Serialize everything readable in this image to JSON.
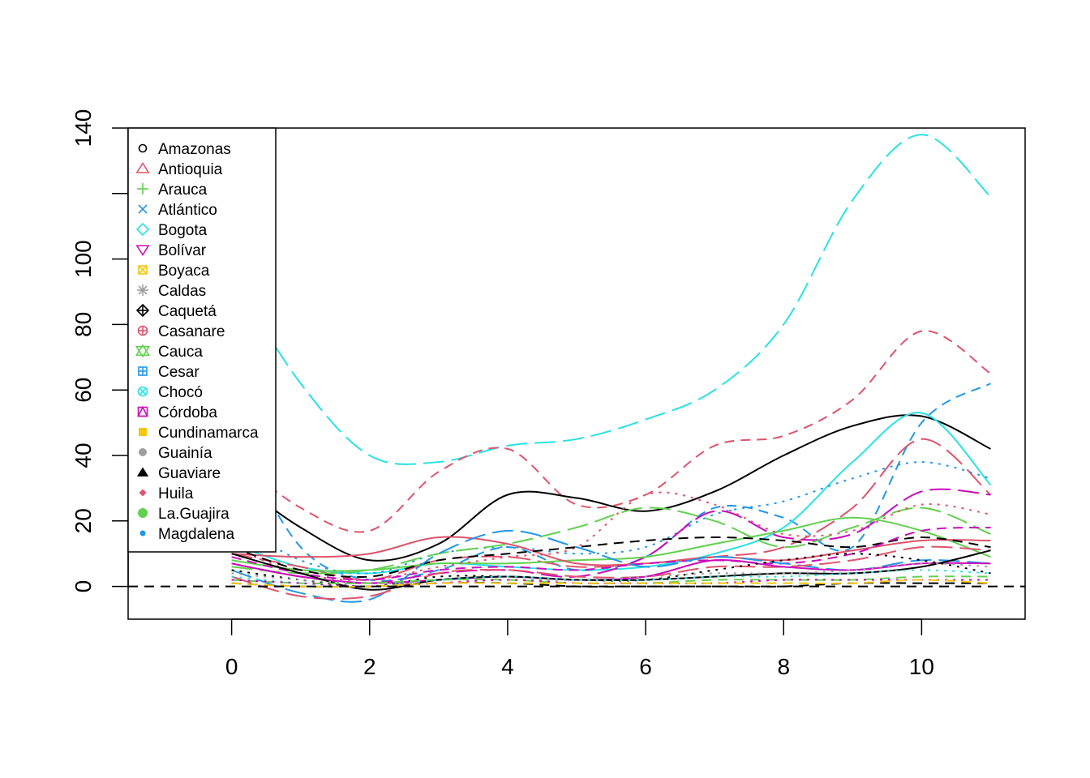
{
  "chart_data": {
    "type": "line",
    "title": "",
    "xlabel": "",
    "ylabel": "",
    "xlim": [
      -1.5,
      11.5
    ],
    "ylim": [
      -10,
      140
    ],
    "xticks": [
      0,
      2,
      4,
      6,
      8,
      10
    ],
    "yticks": [
      0,
      20,
      40,
      60,
      80,
      100,
      120,
      140
    ],
    "ytick_labels": [
      "0",
      "20",
      "40",
      "60",
      "80",
      "100",
      "",
      "140"
    ],
    "reference_line": {
      "y": 0,
      "style": "dashed",
      "color": "#000000"
    },
    "grid": false,
    "legend": {
      "placement": "top-left",
      "entries": [
        {
          "label": "Amazonas",
          "symbol": "circle-open",
          "color": "#000000"
        },
        {
          "label": "Antioquia",
          "symbol": "triangle-up-open",
          "color": "#DF536B"
        },
        {
          "label": "Arauca",
          "symbol": "plus",
          "color": "#61D04F"
        },
        {
          "label": "Atlántico",
          "symbol": "cross",
          "color": "#2297E6"
        },
        {
          "label": "Bogota",
          "symbol": "diamond-open",
          "color": "#28E2E5"
        },
        {
          "label": "Bolívar",
          "symbol": "triangle-down-open",
          "color": "#CD0BBC"
        },
        {
          "label": "Boyaca",
          "symbol": "square-cross",
          "color": "#F5C710"
        },
        {
          "label": "Caldas",
          "symbol": "asterisk",
          "color": "#9E9E9E"
        },
        {
          "label": "Caquetá",
          "symbol": "diamond-plus",
          "color": "#000000"
        },
        {
          "label": "Casanare",
          "symbol": "circle-plus",
          "color": "#DF536B"
        },
        {
          "label": "Cauca",
          "symbol": "star-of-david",
          "color": "#61D04F"
        },
        {
          "label": "Cesar",
          "symbol": "square-plus",
          "color": "#2297E6"
        },
        {
          "label": "Chocó",
          "symbol": "circle-cross",
          "color": "#28E2E5"
        },
        {
          "label": "Córdoba",
          "symbol": "square-triangle",
          "color": "#CD0BBC"
        },
        {
          "label": "Cundinamarca",
          "symbol": "square-filled",
          "color": "#F5C710"
        },
        {
          "label": "Guainía",
          "symbol": "circle-filled",
          "color": "#9E9E9E"
        },
        {
          "label": "Guaviare",
          "symbol": "triangle-filled",
          "color": "#000000"
        },
        {
          "label": "Huila",
          "symbol": "diamond-filled",
          "color": "#DF536B"
        },
        {
          "label": "La.Guajira",
          "symbol": "circle-large-filled",
          "color": "#61D04F"
        },
        {
          "label": "Magdalena",
          "symbol": "circle-small-filled",
          "color": "#2297E6"
        }
      ]
    },
    "x": [
      0,
      1,
      2,
      3,
      4,
      5,
      6,
      7,
      8,
      9,
      10,
      11
    ],
    "series": [
      {
        "color": "#28E2E5",
        "dash": "long",
        "values": [
          95,
          62,
          40,
          38,
          43,
          45,
          51,
          60,
          80,
          118,
          138,
          119
        ]
      },
      {
        "color": "#DF536B",
        "dash": "short",
        "values": [
          40,
          24,
          17,
          35,
          42,
          25,
          28,
          43,
          46,
          57,
          78,
          65
        ]
      },
      {
        "color": "#2297E6",
        "dash": "short",
        "values": [
          48,
          12,
          2,
          5,
          12,
          5,
          9,
          24,
          21,
          12,
          50,
          62
        ]
      },
      {
        "color": "#000000",
        "dash": "solid",
        "values": [
          33,
          18,
          8,
          13,
          28,
          27,
          23,
          29,
          40,
          49,
          52,
          42
        ]
      },
      {
        "color": "#28E2E5",
        "dash": "solid",
        "values": [
          13,
          6,
          4,
          7,
          6,
          5,
          6,
          10,
          18,
          38,
          53,
          31
        ]
      },
      {
        "color": "#DF536B",
        "dash": "long",
        "values": [
          10,
          6,
          2,
          8,
          9,
          6,
          7,
          9,
          12,
          24,
          45,
          28
        ]
      },
      {
        "color": "#2297E6",
        "dash": "dotted",
        "values": [
          20,
          8,
          4,
          10,
          12,
          10,
          12,
          22,
          26,
          33,
          38,
          33
        ]
      },
      {
        "color": "#CD0BBC",
        "dash": "long",
        "values": [
          7,
          3,
          1,
          4,
          5,
          3,
          9,
          23,
          15,
          16,
          29,
          28
        ]
      },
      {
        "color": "#61D04F",
        "dash": "long",
        "values": [
          6,
          4,
          5,
          10,
          13,
          18,
          24,
          20,
          12,
          18,
          24,
          16
        ]
      },
      {
        "color": "#61D04F",
        "dash": "solid",
        "values": [
          8,
          5,
          5,
          7,
          7,
          8,
          9,
          13,
          17,
          21,
          17,
          9
        ]
      },
      {
        "color": "#DF536B",
        "dash": "solid",
        "values": [
          10,
          9,
          10,
          15,
          13,
          7,
          7,
          9,
          8,
          11,
          14,
          14
        ]
      },
      {
        "color": "#DF536B",
        "dash": "dotted",
        "values": [
          12,
          4,
          2,
          6,
          9,
          12,
          28,
          25,
          16,
          17,
          25,
          22
        ]
      },
      {
        "color": "#000000",
        "dash": "short",
        "values": [
          12,
          5,
          3,
          8,
          10,
          12,
          14,
          15,
          14,
          12,
          15,
          12
        ]
      },
      {
        "color": "#CD0BBC",
        "dash": "short",
        "values": [
          9,
          4,
          2,
          5,
          6,
          5,
          7,
          8,
          7,
          10,
          17,
          18
        ]
      },
      {
        "color": "#2297E6",
        "dash": "long",
        "values": [
          5,
          -2,
          -4,
          10,
          17,
          12,
          6,
          9,
          7,
          5,
          8,
          7
        ]
      },
      {
        "color": "#DF536B",
        "dash": "long",
        "values": [
          3,
          -3,
          -3,
          4,
          5,
          3,
          3,
          6,
          6,
          8,
          12,
          11
        ]
      },
      {
        "color": "#CD0BBC",
        "dash": "solid",
        "values": [
          7,
          3,
          1,
          2,
          3,
          2,
          3,
          8,
          6,
          5,
          7,
          7
        ]
      },
      {
        "color": "#000000",
        "dash": "dotted",
        "values": [
          5,
          2,
          0,
          3,
          3,
          2,
          2,
          5,
          8,
          10,
          8,
          4
        ]
      },
      {
        "color": "#000000",
        "dash": "solid",
        "values": [
          10,
          4,
          -1,
          2,
          3,
          2,
          2,
          3,
          4,
          4,
          6,
          11
        ]
      },
      {
        "color": "#9E9E9E",
        "dash": "dotted",
        "values": [
          4,
          2,
          1,
          2,
          2,
          2,
          3,
          4,
          4,
          5,
          7,
          6
        ]
      },
      {
        "color": "#61D04F",
        "dash": "short",
        "values": [
          2,
          1,
          1,
          2,
          2,
          1,
          1,
          2,
          2,
          2,
          3,
          3
        ]
      },
      {
        "color": "#28E2E5",
        "dash": "dotted",
        "values": [
          3,
          1,
          0,
          2,
          3,
          2,
          2,
          3,
          3,
          4,
          5,
          4
        ]
      },
      {
        "color": "#000000",
        "dash": "short",
        "values": [
          1,
          0,
          0,
          1,
          1,
          0,
          0,
          0,
          0,
          1,
          1,
          1
        ]
      },
      {
        "color": "#CD0BBC",
        "dash": "dotted",
        "values": [
          2,
          1,
          0,
          1,
          2,
          1,
          1,
          1,
          2,
          2,
          2,
          2
        ]
      },
      {
        "color": "#F5C710",
        "dash": "short",
        "values": [
          1,
          0,
          0,
          1,
          1,
          1,
          1,
          1,
          1,
          1,
          2,
          1
        ]
      }
    ]
  }
}
